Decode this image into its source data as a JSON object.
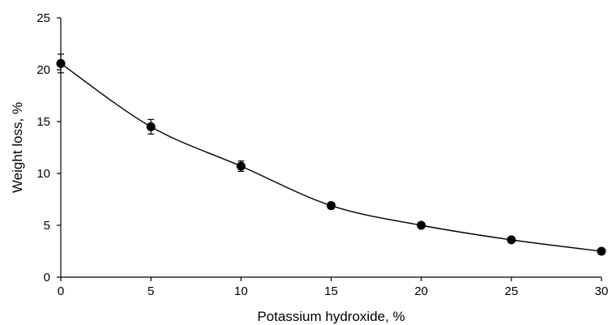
{
  "chart_data": {
    "type": "scatter",
    "title": "",
    "xlabel": "Potassium hydroxide, %",
    "ylabel": "Weight loss, %",
    "xlim": [
      0,
      30
    ],
    "ylim": [
      0,
      25
    ],
    "x_ticks": [
      0,
      5,
      10,
      15,
      20,
      25,
      30
    ],
    "y_ticks": [
      0,
      5,
      10,
      15,
      20,
      25
    ],
    "grid": false,
    "legend": "none",
    "line": "smoothed",
    "series": [
      {
        "x": [
          0,
          5,
          10,
          15,
          20,
          25,
          30
        ],
        "y": [
          20.6,
          14.5,
          10.7,
          6.9,
          5.0,
          3.6,
          2.5
        ],
        "error": [
          0.9,
          0.7,
          0.5,
          0.3,
          0.2,
          0.2,
          0.1
        ]
      }
    ],
    "colors": {
      "line": "#000000",
      "marker": "#000000",
      "axis": "#000000"
    }
  }
}
